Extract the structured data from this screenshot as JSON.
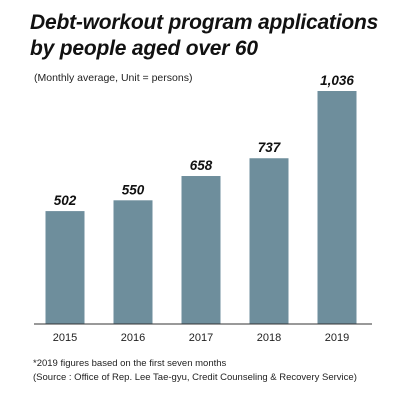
{
  "header": {
    "title": "Debt-workout program applications\nby people aged over 60",
    "subtitle": "(Monthly average, Unit = persons)"
  },
  "footer": {
    "note": "*2019 figures based on the first seven months",
    "source": "(Source : Office of Rep. Lee Tae-gyu, Credit Counseling & Recovery Service)"
  },
  "colors": {
    "bar": "#6e8e9c",
    "axis": "#333333"
  },
  "chart_data": {
    "type": "bar",
    "title": "Debt-workout program applications by people aged over 60",
    "subtitle": "(Monthly average, Unit = persons)",
    "categories": [
      "2015",
      "2016",
      "2017",
      "2018",
      "2019"
    ],
    "values": [
      502,
      550,
      658,
      737,
      1036
    ],
    "value_labels": [
      "502",
      "550",
      "658",
      "737",
      "1,036"
    ],
    "xlabel": "",
    "ylabel": "",
    "ylim": [
      0,
      1036
    ],
    "grid": false,
    "legend": "none"
  }
}
